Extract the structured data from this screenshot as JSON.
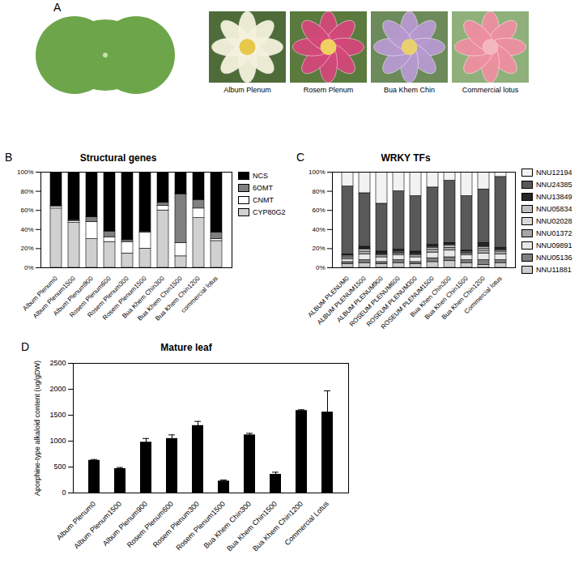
{
  "panel_a": {
    "panel": "A",
    "captions": [
      "Album Plenum",
      "Rosem Plenum",
      "Bua Khem Chin",
      "Commercial lotus"
    ]
  },
  "chart_data": [
    {
      "type": "bar",
      "panel": "B",
      "title": "Structural genes",
      "stacked": true,
      "legend": "right",
      "categories": [
        "Album Plenum0",
        "Album Plenum1500",
        "Album Plenum900",
        "Rosem Plenum600",
        "Rosem Plenum300",
        "Rosem Plenum1500",
        "Bua Khem Chin300",
        "Bua Khem Chin1500",
        "Bua Khem Chin1200",
        "commercial lotus"
      ],
      "series": [
        {
          "name": "NCS",
          "color": "#000000",
          "values": [
            35,
            50,
            47,
            62,
            71,
            62,
            32,
            23,
            29,
            63
          ]
        },
        {
          "name": "6OMT",
          "color": "#808080",
          "values": [
            1,
            1,
            5,
            6,
            2,
            1,
            3,
            51,
            9,
            7
          ]
        },
        {
          "name": "CNMT",
          "color": "#ffffff",
          "values": [
            2,
            2,
            18,
            5,
            12,
            17,
            5,
            14,
            10,
            2
          ]
        },
        {
          "name": "CYP80G2",
          "color": "#d0d0d0",
          "values": [
            62,
            47,
            30,
            27,
            15,
            20,
            60,
            12,
            52,
            28
          ]
        }
      ],
      "ylim": [
        0,
        100
      ],
      "yticks": [
        {
          "value": 0,
          "label": "0%"
        },
        {
          "value": 20,
          "label": "20%"
        },
        {
          "value": 40,
          "label": "40%"
        },
        {
          "value": 60,
          "label": "60%"
        },
        {
          "value": 80,
          "label": "80%"
        },
        {
          "value": 100,
          "label": "100%"
        }
      ]
    },
    {
      "type": "bar",
      "panel": "C",
      "title": "WRKY TFs",
      "stacked": true,
      "legend": "right",
      "categories": [
        "ALBUM PLENUM0",
        "ALBUM PLENUM1500",
        "ALBUM PLENUM900",
        "ROSEUM PLENUM600",
        "ROSEUM PLENUM300",
        "ROSEUM PLENUM1500",
        "Bua Khen Chin300",
        "Bua Khen Chin1500",
        "Bua Khen Chin1200",
        "Commercial lotus"
      ],
      "series": [
        {
          "name": "NNU12194",
          "color": "#f2f2f2",
          "values": [
            15,
            22,
            33,
            20,
            25,
            16,
            9,
            25,
            18,
            5
          ]
        },
        {
          "name": "NNU24385",
          "color": "#595959",
          "values": [
            71,
            56,
            50,
            61,
            58,
            60,
            65,
            57,
            56,
            74
          ]
        },
        {
          "name": "NNU13849",
          "color": "#262626",
          "values": [
            1,
            2,
            2,
            2,
            2,
            2,
            2,
            1,
            4,
            2
          ]
        },
        {
          "name": "NNU05834",
          "color": "#bfbfbf",
          "values": [
            1,
            1,
            1,
            1,
            1,
            1,
            1,
            1,
            2,
            1
          ]
        },
        {
          "name": "NNU02028",
          "color": "#d9d9d9",
          "values": [
            1,
            2,
            1,
            1,
            1,
            2,
            2,
            1,
            2,
            1
          ]
        },
        {
          "name": "NNU01372",
          "color": "#a6a6a6",
          "values": [
            2,
            3,
            2,
            2,
            2,
            3,
            3,
            2,
            3,
            3
          ]
        },
        {
          "name": "NNU09891",
          "color": "#e8e8e8",
          "values": [
            3,
            6,
            5,
            5,
            5,
            6,
            7,
            5,
            7,
            6
          ]
        },
        {
          "name": "NNU05136",
          "color": "#7f7f7f",
          "values": [
            2,
            3,
            2,
            3,
            2,
            4,
            4,
            3,
            5,
            3
          ]
        },
        {
          "name": "NNU11881",
          "color": "#cccccc",
          "values": [
            4,
            5,
            4,
            5,
            4,
            6,
            7,
            5,
            3,
            5
          ]
        }
      ],
      "ylim": [
        0,
        100
      ],
      "yticks": [
        {
          "value": 0,
          "label": "0%"
        },
        {
          "value": 20,
          "label": "20%"
        },
        {
          "value": 40,
          "label": "40%"
        },
        {
          "value": 60,
          "label": "60%"
        },
        {
          "value": 80,
          "label": "80%"
        },
        {
          "value": 100,
          "label": "100%"
        }
      ]
    },
    {
      "type": "bar",
      "panel": "D",
      "title": "Mature leaf",
      "y_label": "Aporphine-type alkaloid content (ug/gDW)",
      "categories": [
        "Album Plenum0",
        "Album Plenum1500",
        "Album Plenum900",
        "Rosem Plenum600",
        "Rosem Plenum300",
        "Rosem Plenum1500",
        "Bua Khem Chin300",
        "Bua Khem Chin1500",
        "Bua Khem Chin1200",
        "Commercial Lotus"
      ],
      "values": [
        630,
        470,
        980,
        1050,
        1300,
        230,
        1120,
        360,
        1590,
        1560
      ],
      "errors": [
        15,
        20,
        70,
        70,
        80,
        20,
        30,
        40,
        15,
        410
      ],
      "color": "#000000",
      "ylim": [
        0,
        2500
      ],
      "yticks": [
        0,
        500,
        1000,
        1500,
        2000,
        2500
      ]
    }
  ]
}
